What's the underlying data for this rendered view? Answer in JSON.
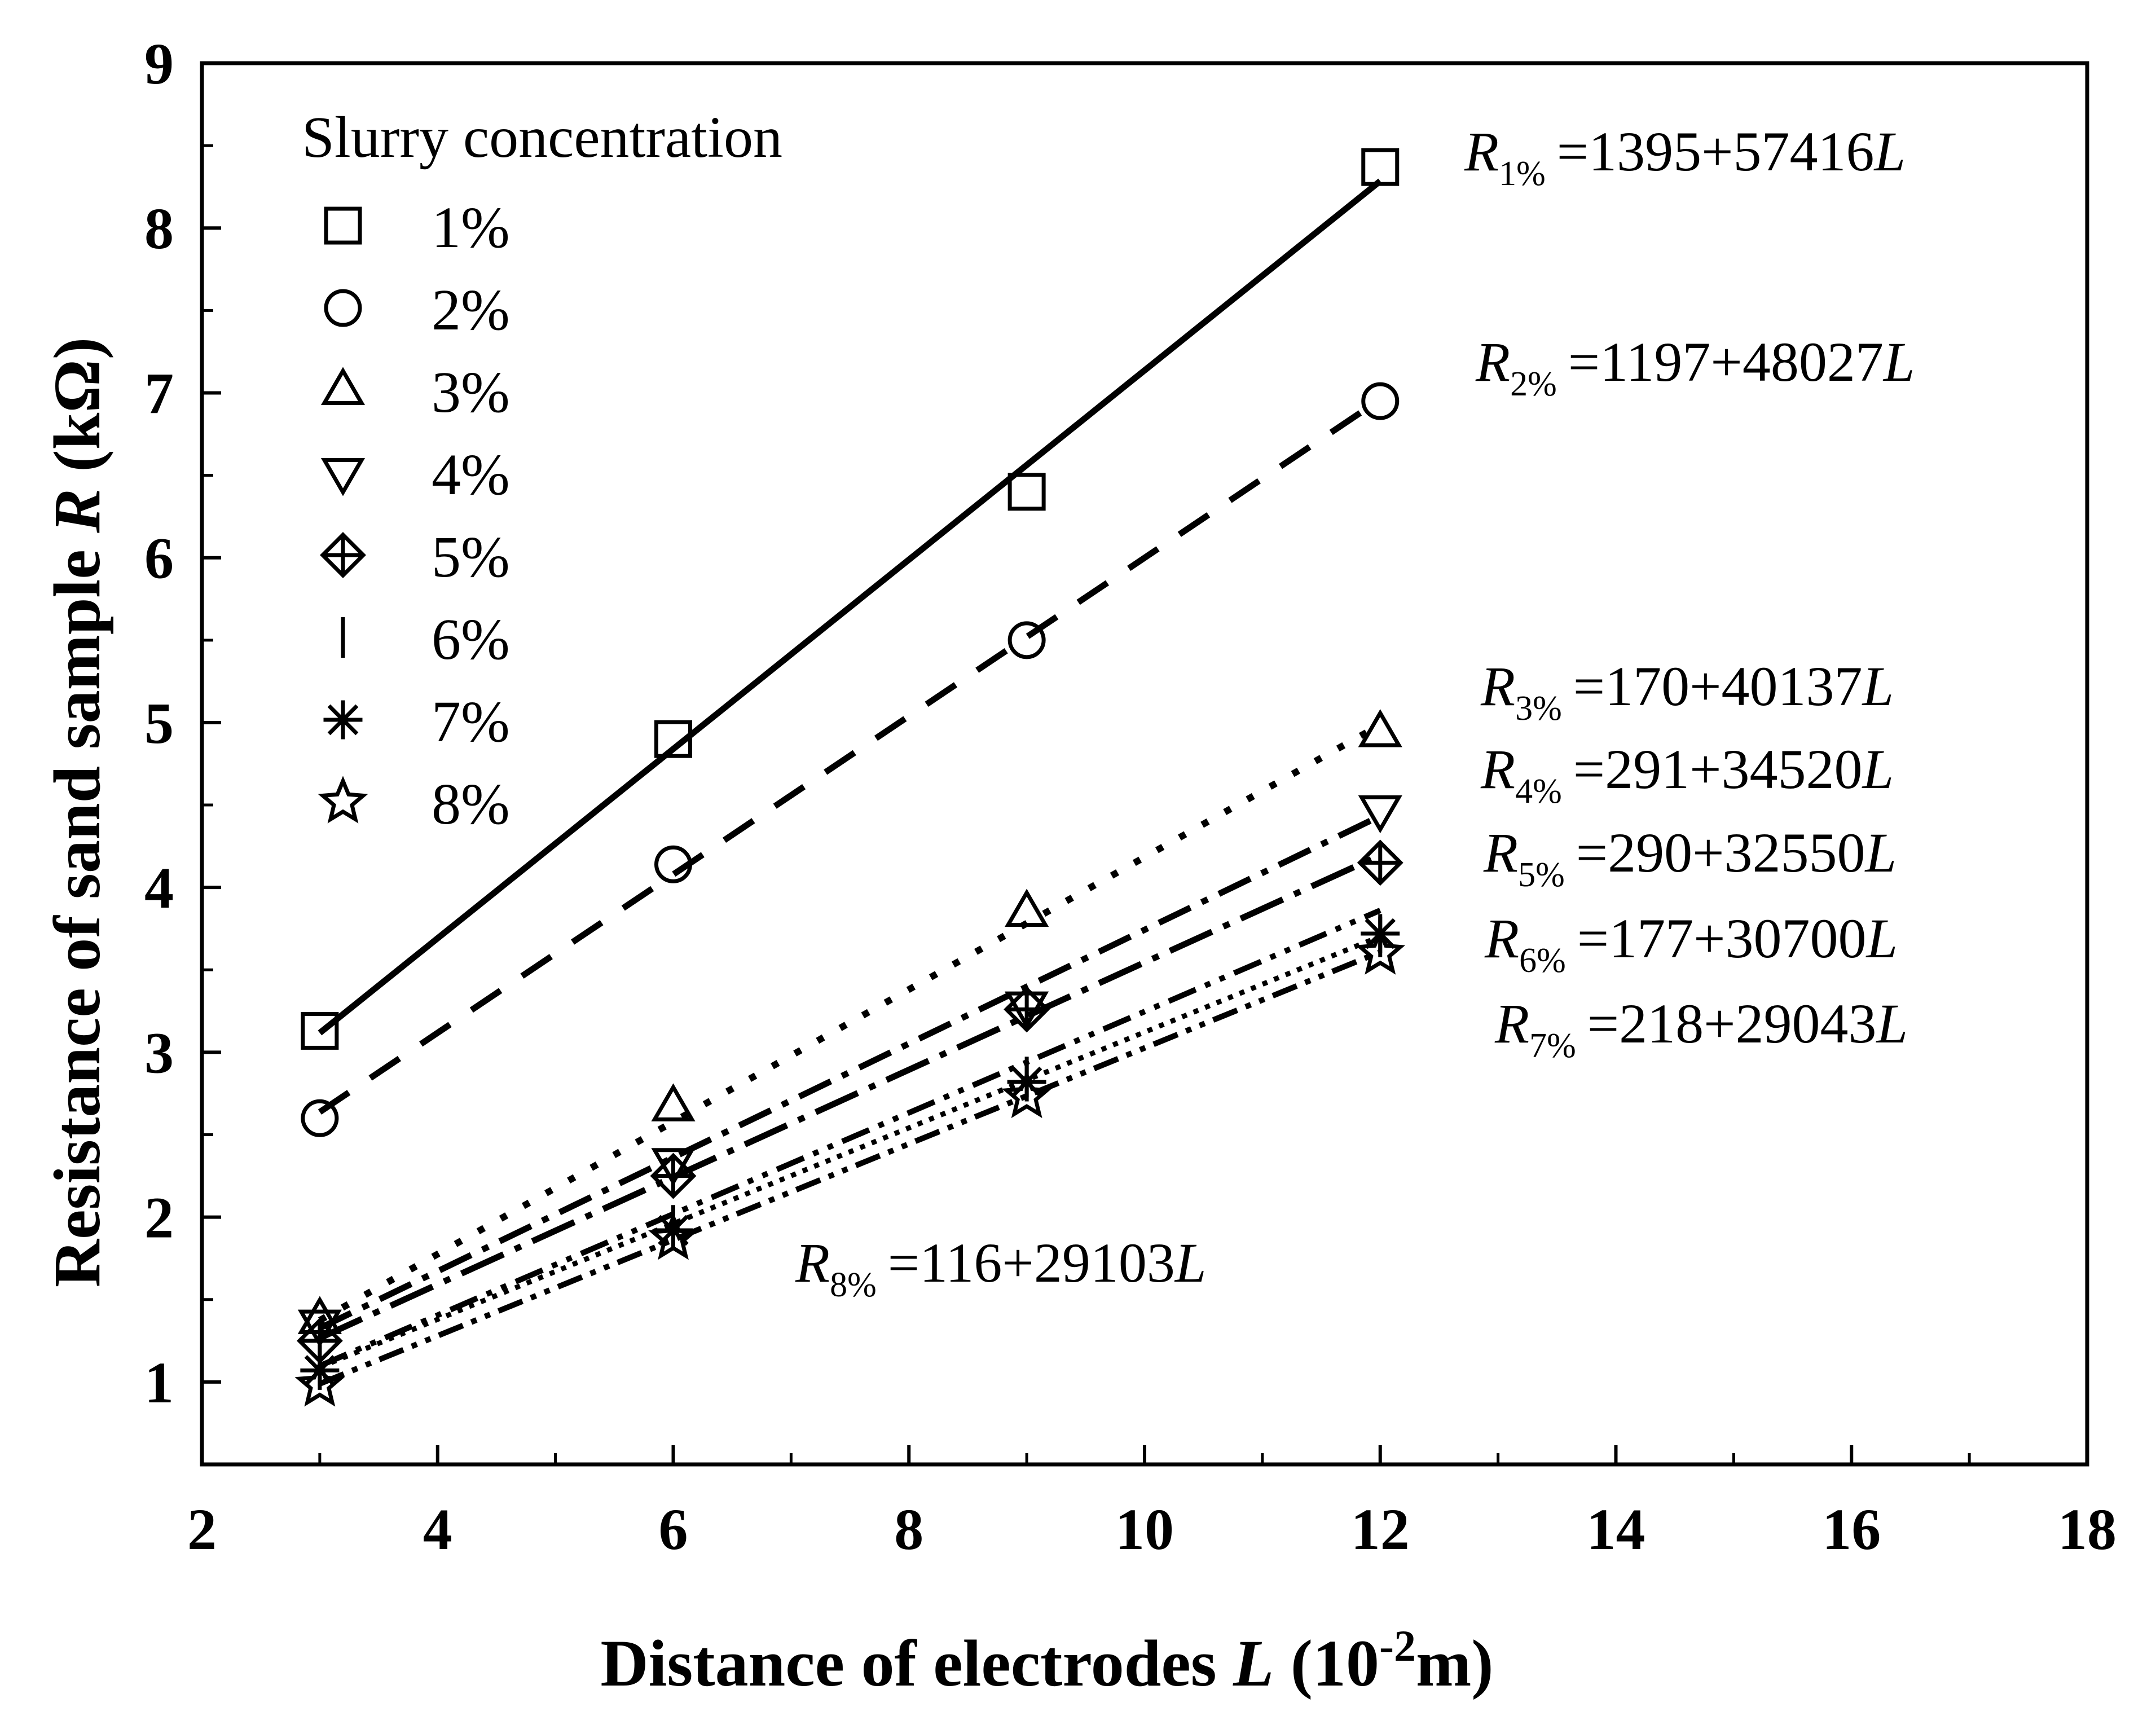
{
  "chart_data": {
    "type": "scatter",
    "xlabel": "Distance of electrodes ",
    "xlabel_var": "L",
    "xlabel_unit_open": " (10",
    "xlabel_unit_exp": "-2",
    "xlabel_unit_close": "m)",
    "ylabel": "Resistance of sand sample ",
    "ylabel_var": "R",
    "ylabel_unit": " (kΩ)",
    "xlim": [
      2,
      18
    ],
    "ylim": [
      0.5,
      9
    ],
    "x_ticks": [
      2,
      4,
      6,
      8,
      10,
      12,
      14,
      16,
      18
    ],
    "y_ticks": [
      1,
      2,
      3,
      4,
      5,
      6,
      7,
      8,
      9
    ],
    "legend_title": "Slurry concentration",
    "legend_position": "top-left",
    "series": [
      {
        "name": "1%",
        "marker": "square",
        "line": "solid",
        "x": [
          3,
          6,
          9,
          12
        ],
        "y": [
          3.13,
          4.9,
          6.4,
          8.37
        ],
        "fit": {
          "a": 1395,
          "b": 57416
        },
        "eq_sub": "1%",
        "eq_text": "=1395+57416"
      },
      {
        "name": "2%",
        "marker": "circle",
        "line": "dash",
        "x": [
          3,
          6,
          9,
          12
        ],
        "y": [
          2.6,
          4.14,
          5.5,
          6.95
        ],
        "fit": {
          "a": 1197,
          "b": 48027
        },
        "eq_sub": "2%",
        "eq_text": "=1197+48027"
      },
      {
        "name": "3%",
        "marker": "triangle-up",
        "line": "dot-wide",
        "x": [
          3,
          6,
          9,
          12
        ],
        "y": [
          1.38,
          2.67,
          3.85,
          4.94
        ],
        "fit": {
          "a": 170,
          "b": 40137
        },
        "eq_sub": "3%",
        "eq_text": "=170+40137"
      },
      {
        "name": "4%",
        "marker": "triangle-down",
        "line": "dash-dot",
        "x": [
          3,
          6,
          9,
          12
        ],
        "y": [
          1.35,
          2.33,
          3.28,
          4.47
        ],
        "fit": {
          "a": 291,
          "b": 34520
        },
        "eq_sub": "4%",
        "eq_text": "=291+34520"
      },
      {
        "name": "5%",
        "marker": "diamond-plus",
        "line": "long-dash-dot",
        "x": [
          3,
          6,
          9,
          12
        ],
        "y": [
          1.25,
          2.25,
          3.26,
          4.15
        ],
        "fit": {
          "a": 290,
          "b": 32550
        },
        "eq_sub": "5%",
        "eq_text": "=290+32550"
      },
      {
        "name": "6%",
        "marker": "vbar",
        "line": "dash-dot-dot",
        "x": [
          3,
          6,
          9,
          12
        ],
        "y": [
          1.1,
          1.95,
          2.85,
          3.7
        ],
        "fit": {
          "a": 177,
          "b": 30700
        },
        "eq_sub": "6%",
        "eq_text": "=177+30700"
      },
      {
        "name": "7%",
        "marker": "asterisk",
        "line": "dot",
        "x": [
          3,
          6,
          9,
          12
        ],
        "y": [
          1.07,
          1.92,
          2.82,
          3.72
        ],
        "fit": {
          "a": 218,
          "b": 29043
        },
        "eq_sub": "7%",
        "eq_text": "=218+29043"
      },
      {
        "name": "8%",
        "marker": "star",
        "line": "dash-dot-dot-2",
        "x": [
          3,
          6,
          9,
          12
        ],
        "y": [
          0.98,
          1.87,
          2.73,
          3.6
        ],
        "fit": {
          "a": 116,
          "b": 29103
        },
        "eq_sub": "8%",
        "eq_text": "=116+29103"
      }
    ],
    "equation_symbol": "R",
    "equation_var": "L"
  }
}
